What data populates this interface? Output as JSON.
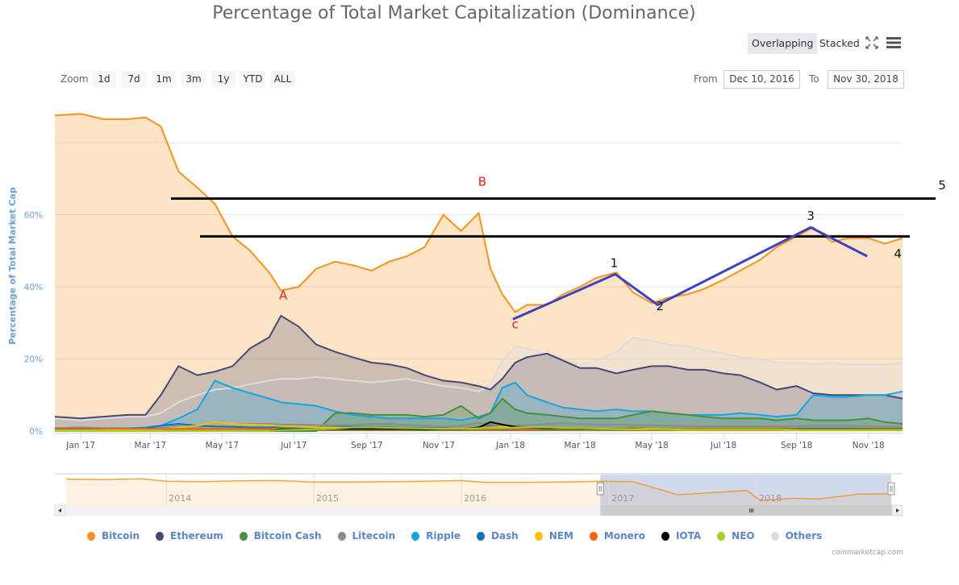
{
  "title": "Percentage of Total Market Capitalization (Dominance)",
  "toolbar": {
    "overlapping_label": "Overlapping",
    "stacked_label": "Stacked",
    "fullscreen_icon": "fullscreen-icon",
    "menu_icon": "hamburger-menu-icon"
  },
  "zoom": {
    "label": "Zoom",
    "buttons": [
      "1d",
      "7d",
      "1m",
      "3m",
      "1y",
      "YTD",
      "ALL"
    ]
  },
  "range": {
    "from_label": "From",
    "from_value": "Dec 10, 2016",
    "to_label": "To",
    "to_value": "Nov 30, 2018"
  },
  "navigator": {
    "year_labels": [
      "2014",
      "2015",
      "2016",
      "2017",
      "2018"
    ]
  },
  "credits": "coinmarketcap.com",
  "colors": {
    "Bitcoin": "#f7931a",
    "Ethereum": "#454a75",
    "Bitcoin Cash": "#478f3c",
    "Litecoin": "#8c8c8c",
    "Ripple": "#16a5dc",
    "Dash": "#0c75bb",
    "NEM": "#fcc000",
    "Monero": "#fb6412",
    "IOTA": "#000000",
    "NEO": "#9fd31e",
    "Others": "#dddddd",
    "annotation_red": "#e8191e",
    "annotation_line": "#4040c0",
    "axis_label": "#6aa0d8"
  },
  "chart_data": {
    "type": "area",
    "title": "Percentage of Total Market Capitalization (Dominance)",
    "xlabel": "",
    "ylabel": "Percentage of Total Market Cap",
    "x_range": [
      "2016-12-10",
      "2018-11-30"
    ],
    "ylim": [
      0,
      89
    ],
    "y_ticks": [
      0,
      20,
      40,
      60,
      80
    ],
    "y_tick_labels": [
      "0%",
      "20%",
      "40%",
      "60%",
      ""
    ],
    "x_tick_labels": [
      "Jan '17",
      "Mar '17",
      "May '17",
      "Jul '17",
      "Sep '17",
      "Nov '17",
      "Jan '18",
      "Mar '18",
      "May '18",
      "Jul '18",
      "Sep '18",
      "Nov '18"
    ],
    "x_tick_dates": [
      "2017-01-01",
      "2017-03-01",
      "2017-05-01",
      "2017-07-01",
      "2017-09-01",
      "2017-11-01",
      "2018-01-01",
      "2018-03-01",
      "2018-05-01",
      "2018-07-01",
      "2018-09-01",
      "2018-11-01"
    ],
    "grid": true,
    "legend_position": "bottom",
    "x": [
      "2016-12-10",
      "2017-01-01",
      "2017-01-20",
      "2017-02-10",
      "2017-02-25",
      "2017-03-10",
      "2017-03-25",
      "2017-04-10",
      "2017-04-25",
      "2017-05-10",
      "2017-05-25",
      "2017-06-10",
      "2017-06-20",
      "2017-07-05",
      "2017-07-20",
      "2017-08-05",
      "2017-08-20",
      "2017-09-05",
      "2017-09-20",
      "2017-10-05",
      "2017-10-20",
      "2017-11-05",
      "2017-11-20",
      "2017-12-05",
      "2017-12-15",
      "2017-12-25",
      "2018-01-05",
      "2018-01-15",
      "2018-02-01",
      "2018-02-15",
      "2018-03-01",
      "2018-03-15",
      "2018-04-01",
      "2018-04-15",
      "2018-05-01",
      "2018-05-15",
      "2018-06-01",
      "2018-06-15",
      "2018-07-01",
      "2018-07-15",
      "2018-08-01",
      "2018-08-15",
      "2018-09-01",
      "2018-09-15",
      "2018-10-01",
      "2018-10-15",
      "2018-11-01",
      "2018-11-15",
      "2018-11-30"
    ],
    "series": [
      {
        "name": "Bitcoin",
        "values": [
          87.5,
          88.0,
          86.5,
          86.5,
          87.0,
          84.5,
          72.0,
          67.5,
          63.0,
          54.0,
          50.0,
          44.0,
          39.0,
          40.0,
          45.0,
          47.0,
          46.0,
          44.5,
          47.0,
          48.5,
          51.0,
          60.0,
          55.5,
          60.5,
          45.0,
          38.0,
          33.0,
          35.0,
          35.0,
          38.0,
          40.0,
          42.5,
          44.0,
          38.5,
          35.5,
          37.0,
          38.0,
          39.5,
          42.0,
          44.5,
          47.5,
          51.0,
          54.0,
          56.5,
          52.5,
          53.5,
          53.5,
          52.0,
          53.5
        ]
      },
      {
        "name": "Others",
        "values": [
          3.5,
          3.0,
          3.5,
          4.0,
          4.0,
          5.0,
          8.0,
          10.0,
          11.5,
          12.0,
          13.0,
          14.0,
          14.5,
          14.5,
          15.0,
          14.5,
          14.0,
          13.5,
          14.0,
          14.5,
          13.5,
          12.5,
          12.0,
          11.0,
          13.0,
          19.5,
          23.5,
          23.0,
          21.5,
          20.0,
          18.5,
          19.5,
          22.0,
          26.0,
          25.0,
          24.0,
          23.5,
          22.5,
          21.5,
          20.5,
          20.0,
          19.0,
          19.0,
          18.5,
          19.0,
          18.5,
          18.5,
          18.5,
          19.0
        ]
      },
      {
        "name": "Ethereum",
        "values": [
          4.0,
          3.5,
          4.0,
          4.5,
          4.5,
          10.0,
          18.0,
          15.5,
          16.5,
          18.0,
          23.0,
          26.0,
          32.0,
          29.0,
          24.0,
          22.0,
          20.5,
          19.0,
          18.5,
          17.5,
          15.5,
          14.0,
          13.5,
          12.5,
          11.5,
          14.5,
          19.0,
          20.5,
          21.5,
          19.5,
          17.5,
          17.5,
          16.0,
          17.0,
          18.0,
          18.0,
          17.0,
          17.0,
          16.0,
          15.5,
          13.5,
          11.5,
          12.5,
          10.5,
          10.0,
          10.0,
          10.0,
          10.0,
          9.0
        ]
      },
      {
        "name": "Ripple",
        "values": [
          0.8,
          1.0,
          0.8,
          0.8,
          1.0,
          1.5,
          3.5,
          6.0,
          14.0,
          12.0,
          10.5,
          9.0,
          8.0,
          7.5,
          7.0,
          5.5,
          4.5,
          4.0,
          3.5,
          3.5,
          3.5,
          3.5,
          3.0,
          4.0,
          5.0,
          12.0,
          13.5,
          10.0,
          8.0,
          6.5,
          6.0,
          5.5,
          6.0,
          5.5,
          5.5,
          5.0,
          4.5,
          4.5,
          4.5,
          5.0,
          4.5,
          4.0,
          4.5,
          10.0,
          9.5,
          9.5,
          10.0,
          10.0,
          11.0
        ]
      },
      {
        "name": "Bitcoin Cash",
        "values": [
          0,
          0,
          0,
          0,
          0,
          0,
          0,
          0,
          0,
          0,
          0,
          0,
          0,
          0,
          0,
          5.0,
          5.0,
          4.5,
          4.5,
          4.5,
          4.0,
          4.5,
          7.0,
          3.5,
          5.0,
          9.0,
          6.0,
          5.0,
          4.5,
          4.0,
          3.5,
          3.5,
          3.5,
          4.5,
          5.5,
          5.0,
          4.5,
          4.0,
          3.5,
          3.5,
          3.5,
          3.0,
          3.5,
          3.0,
          3.0,
          3.0,
          3.5,
          2.5,
          2.0
        ]
      },
      {
        "name": "Litecoin",
        "values": [
          0.5,
          0.5,
          0.6,
          0.6,
          0.7,
          0.8,
          1.0,
          1.5,
          2.5,
          2.0,
          2.0,
          2.0,
          1.8,
          1.8,
          1.7,
          1.6,
          1.7,
          2.0,
          2.0,
          1.7,
          1.5,
          1.3,
          1.5,
          2.3,
          2.0,
          1.5,
          1.5,
          1.6,
          2.0,
          2.2,
          2.0,
          1.8,
          1.8,
          1.7,
          1.6,
          1.5,
          1.4,
          1.3,
          1.3,
          1.3,
          1.3,
          1.3,
          1.4,
          1.4,
          1.4,
          1.4,
          1.4,
          1.3,
          1.2
        ]
      },
      {
        "name": "Dash",
        "values": [
          0.5,
          0.5,
          0.5,
          0.6,
          0.8,
          1.5,
          2.0,
          1.5,
          1.3,
          1.2,
          1.0,
          1.0,
          1.2,
          1.1,
          1.0,
          1.2,
          1.2,
          1.1,
          1.0,
          0.9,
          0.8,
          0.8,
          0.7,
          0.7,
          0.6,
          0.5,
          0.5,
          0.6,
          0.6,
          0.6,
          0.6,
          0.6,
          0.6,
          0.5,
          0.5,
          0.5,
          0.5,
          0.5,
          0.5,
          0.5,
          0.5,
          0.5,
          0.6,
          0.6,
          0.6,
          0.6,
          0.6,
          0.5,
          0.5
        ]
      },
      {
        "name": "NEM",
        "values": [
          0.2,
          0.2,
          0.2,
          0.3,
          0.4,
          0.5,
          1.0,
          1.5,
          2.5,
          2.0,
          1.8,
          1.6,
          1.4,
          1.2,
          1.0,
          1.0,
          0.9,
          0.8,
          0.7,
          0.6,
          0.5,
          0.5,
          0.5,
          0.8,
          1.0,
          1.2,
          1.0,
          0.8,
          0.7,
          0.6,
          0.6,
          0.5,
          0.5,
          0.5,
          0.4,
          0.4,
          0.3,
          0.3,
          0.3,
          0.3,
          0.3,
          0.3,
          0.3,
          0.3,
          0.3,
          0.3,
          0.3,
          0.3,
          0.3
        ]
      },
      {
        "name": "Monero",
        "values": [
          0.8,
          0.8,
          0.7,
          0.6,
          0.6,
          0.6,
          0.6,
          0.6,
          0.6,
          0.6,
          0.6,
          0.5,
          0.5,
          0.5,
          0.5,
          0.5,
          0.5,
          0.5,
          0.5,
          0.5,
          0.6,
          0.5,
          0.5,
          0.6,
          0.6,
          0.6,
          0.6,
          0.6,
          0.7,
          0.7,
          0.7,
          0.7,
          0.7,
          0.8,
          0.8,
          0.7,
          0.7,
          0.7,
          0.7,
          0.7,
          0.7,
          0.7,
          0.6,
          0.6,
          0.6,
          0.6,
          0.6,
          0.6,
          0.6
        ]
      },
      {
        "name": "IOTA",
        "values": [
          0,
          0,
          0,
          0,
          0,
          0,
          0,
          0,
          0,
          0,
          0,
          0,
          0.5,
          0.5,
          0.5,
          0.6,
          0.6,
          0.6,
          0.6,
          0.6,
          0.5,
          0.6,
          0.6,
          1.0,
          2.5,
          1.8,
          1.2,
          1.0,
          0.8,
          0.8,
          0.7,
          0.6,
          0.6,
          0.7,
          0.6,
          0.6,
          0.5,
          0.5,
          0.5,
          0.5,
          0.5,
          0.5,
          0.5,
          0.5,
          0.5,
          0.5,
          0.5,
          0.5,
          0.5
        ]
      },
      {
        "name": "NEO",
        "values": [
          0,
          0,
          0,
          0,
          0,
          0,
          0,
          0,
          0,
          0,
          0,
          0,
          0.3,
          0.4,
          0.5,
          0.7,
          1.0,
          1.0,
          0.9,
          0.8,
          0.7,
          0.7,
          0.7,
          0.8,
          1.0,
          0.9,
          1.0,
          1.1,
          1.0,
          0.9,
          0.8,
          0.7,
          0.6,
          0.6,
          0.7,
          0.6,
          0.5,
          0.5,
          0.5,
          0.5,
          0.5,
          0.5,
          0.4,
          0.4,
          0.4,
          0.4,
          0.4,
          0.4,
          0.4
        ]
      }
    ],
    "annotations": {
      "horizontal_lines": [
        {
          "label": "5",
          "value": 64.5
        },
        {
          "label": "",
          "value": 54.0
        }
      ],
      "wave_labels_abc": [
        "A",
        "B",
        "c"
      ],
      "wave_labels_numeric": [
        "1",
        "2",
        "3",
        "4",
        "5"
      ],
      "wave_path": [
        {
          "date": "2018-01-03",
          "value": 31.0
        },
        {
          "date": "2018-03-31",
          "value": 43.5
        },
        {
          "date": "2018-05-06",
          "value": 35.0
        },
        {
          "date": "2018-09-13",
          "value": 56.5
        },
        {
          "date": "2018-10-31",
          "value": 48.5
        }
      ],
      "wave_point_dates": {
        "A": "2017-06-22",
        "B": "2017-12-08",
        "c": "2018-01-05",
        "1": "2018-03-30",
        "2": "2018-05-08",
        "3": "2018-09-13",
        "4": "2018-11-26",
        "5": "2018-12-31"
      },
      "wave_point_values": {
        "A": 36.5,
        "B": 68.0,
        "c": 28.5,
        "1": 45.5,
        "2": 33.5,
        "3": 58.5,
        "4": 48.0,
        "5": 67.0
      }
    },
    "navigator": {
      "x_range": [
        "2013-04-28",
        "2018-11-30"
      ],
      "selected_range": [
        "2016-12-10",
        "2018-11-30"
      ],
      "x_tick_labels": [
        "2014",
        "2015",
        "2016",
        "2017",
        "2018"
      ],
      "series_name": "Bitcoin",
      "x": [
        "2013-04-28",
        "2013-08-01",
        "2013-11-01",
        "2014-01-01",
        "2014-04-01",
        "2014-07-01",
        "2014-10-01",
        "2015-01-01",
        "2015-04-01",
        "2015-07-01",
        "2015-10-01",
        "2016-01-01",
        "2016-03-01",
        "2016-06-01",
        "2016-09-01",
        "2016-12-10",
        "2017-03-01",
        "2017-06-20",
        "2017-09-01",
        "2017-12-08",
        "2018-01-10",
        "2018-04-01",
        "2018-06-01",
        "2018-09-13",
        "2018-11-30"
      ],
      "values": [
        94,
        93,
        95,
        88,
        87,
        89,
        90,
        86,
        86,
        87,
        88,
        90,
        85,
        85,
        86,
        88,
        87,
        50,
        55,
        62,
        34,
        40,
        38,
        52,
        53
      ]
    }
  },
  "legend": [
    {
      "name": "Bitcoin"
    },
    {
      "name": "Ethereum"
    },
    {
      "name": "Bitcoin Cash"
    },
    {
      "name": "Litecoin"
    },
    {
      "name": "Ripple"
    },
    {
      "name": "Dash"
    },
    {
      "name": "NEM"
    },
    {
      "name": "Monero"
    },
    {
      "name": "IOTA"
    },
    {
      "name": "NEO"
    },
    {
      "name": "Others"
    }
  ]
}
